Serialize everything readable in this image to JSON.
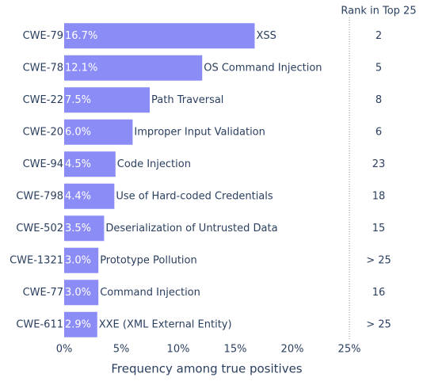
{
  "chart_data": {
    "type": "bar",
    "orientation": "horizontal",
    "categories": [
      "CWE-79",
      "CWE-78",
      "CWE-22",
      "CWE-20",
      "CWE-94",
      "CWE-798",
      "CWE-502",
      "CWE-1321",
      "CWE-77",
      "CWE-611"
    ],
    "values": [
      16.7,
      12.1,
      7.5,
      6.0,
      4.5,
      4.4,
      3.5,
      3.0,
      3.0,
      2.9
    ],
    "value_labels": [
      "16.7%",
      "12.1%",
      "7.5%",
      "6.0%",
      "4.5%",
      "4.4%",
      "3.5%",
      "3.0%",
      "3.0%",
      "2.9%"
    ],
    "annotations": [
      "XSS",
      "OS Command Injection",
      "Path Traversal",
      "Improper Input Validation",
      "Code Injection",
      "Use of Hard-coded Credentials",
      "Deserialization of Untrusted Data",
      "Prototype Pollution",
      "Command Injection",
      "XXE (XML External Entity)"
    ],
    "rank_header": "Rank in Top 25",
    "ranks": [
      "2",
      "5",
      "8",
      "6",
      "23",
      "18",
      "15",
      "> 25",
      "16",
      "> 25"
    ],
    "color": "#8c8cf7",
    "xlabel": "Frequency among true positives",
    "xlim": [
      0,
      25
    ],
    "xticks": [
      {
        "value": 0,
        "label": "0%"
      },
      {
        "value": 5,
        "label": "5%"
      },
      {
        "value": 10,
        "label": "10%"
      },
      {
        "value": 15,
        "label": "15%"
      },
      {
        "value": 20,
        "label": "20%"
      },
      {
        "value": 25,
        "label": "25%"
      }
    ]
  }
}
